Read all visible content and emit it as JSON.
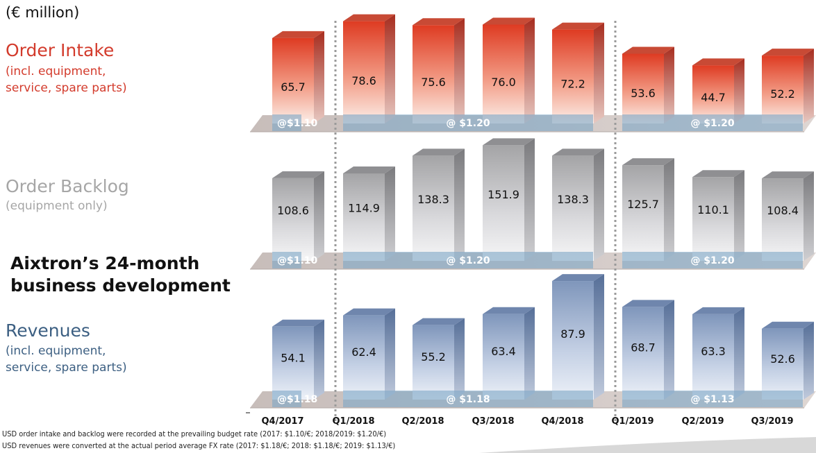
{
  "unit_label": "(€ million)",
  "main_title": [
    "Aixtron’s 24-month",
    "business development"
  ],
  "colors": {
    "order_intake": "#d33b2c",
    "order_backlog": "#a6a6a6",
    "revenues": "#3c5f82"
  },
  "chart_data": [
    {
      "type": "bar",
      "title": "Order Intake",
      "subtitle": [
        "(incl. equipment,",
        "service, spare parts)"
      ],
      "categories": [
        "Q4/2017",
        "Q1/2018",
        "Q2/2018",
        "Q3/2018",
        "Q4/2018",
        "Q1/2019",
        "Q2/2019",
        "Q3/2019"
      ],
      "values": [
        65.7,
        78.6,
        75.6,
        76.0,
        72.2,
        53.6,
        44.7,
        52.2
      ],
      "value_labels": [
        "65.7",
        "78.6",
        "75.6",
        "76.0",
        "72.2",
        "53.6",
        "44.7",
        "52.2"
      ],
      "fx_labels": [
        "@$1.10",
        "@ $1.20",
        "@ $1.20"
      ],
      "ylim": [
        0,
        80
      ],
      "color": "#d33b2c"
    },
    {
      "type": "bar",
      "title": "Order Backlog",
      "subtitle": [
        "(equipment only)"
      ],
      "categories": [
        "Q4/2017",
        "Q1/2018",
        "Q2/2018",
        "Q3/2018",
        "Q4/2018",
        "Q1/2019",
        "Q2/2019",
        "Q3/2019"
      ],
      "values": [
        108.6,
        114.9,
        138.3,
        151.9,
        138.3,
        125.7,
        110.1,
        108.4
      ],
      "value_labels": [
        "108.6",
        "114.9",
        "138.3",
        "151.9",
        "138.3",
        "125.7",
        "110.1",
        "108.4"
      ],
      "fx_labels": [
        "@$1.10",
        "@ $1.20",
        "@ $1.20"
      ],
      "ylim": [
        0,
        155
      ],
      "color": "#a6a6a6"
    },
    {
      "type": "bar",
      "title": "Revenues",
      "subtitle": [
        "(incl. equipment,",
        "service, spare parts)"
      ],
      "categories": [
        "Q4/2017",
        "Q1/2018",
        "Q2/2018",
        "Q3/2018",
        "Q4/2018",
        "Q1/2019",
        "Q2/2019",
        "Q3/2019"
      ],
      "values": [
        54.1,
        62.4,
        55.2,
        63.4,
        87.9,
        68.7,
        63.3,
        52.6
      ],
      "value_labels": [
        "54.1",
        "62.4",
        "55.2",
        "63.4",
        "87.9",
        "68.7",
        "63.3",
        "52.6"
      ],
      "fx_labels": [
        "@$1.18",
        "@ $1.18",
        "@ $1.13"
      ],
      "ylim": [
        0,
        90
      ],
      "color": "#3c5f82"
    }
  ],
  "x_tick_labels": [
    "Q4/2017",
    "Q1/2018",
    "Q2/2018",
    "Q3/2018",
    "Q4/2018",
    "Q1/2019",
    "Q2/2019",
    "Q3/2019"
  ],
  "footnotes": [
    "USD order intake and backlog were recorded at the prevailing budget rate (2017: $1.10/€; 2018/2019: $1.20/€)",
    "USD revenues were converted at the actual period average FX rate (2017: $1.18/€; 2018: $1.18/€; 2019: $1.13/€)"
  ]
}
